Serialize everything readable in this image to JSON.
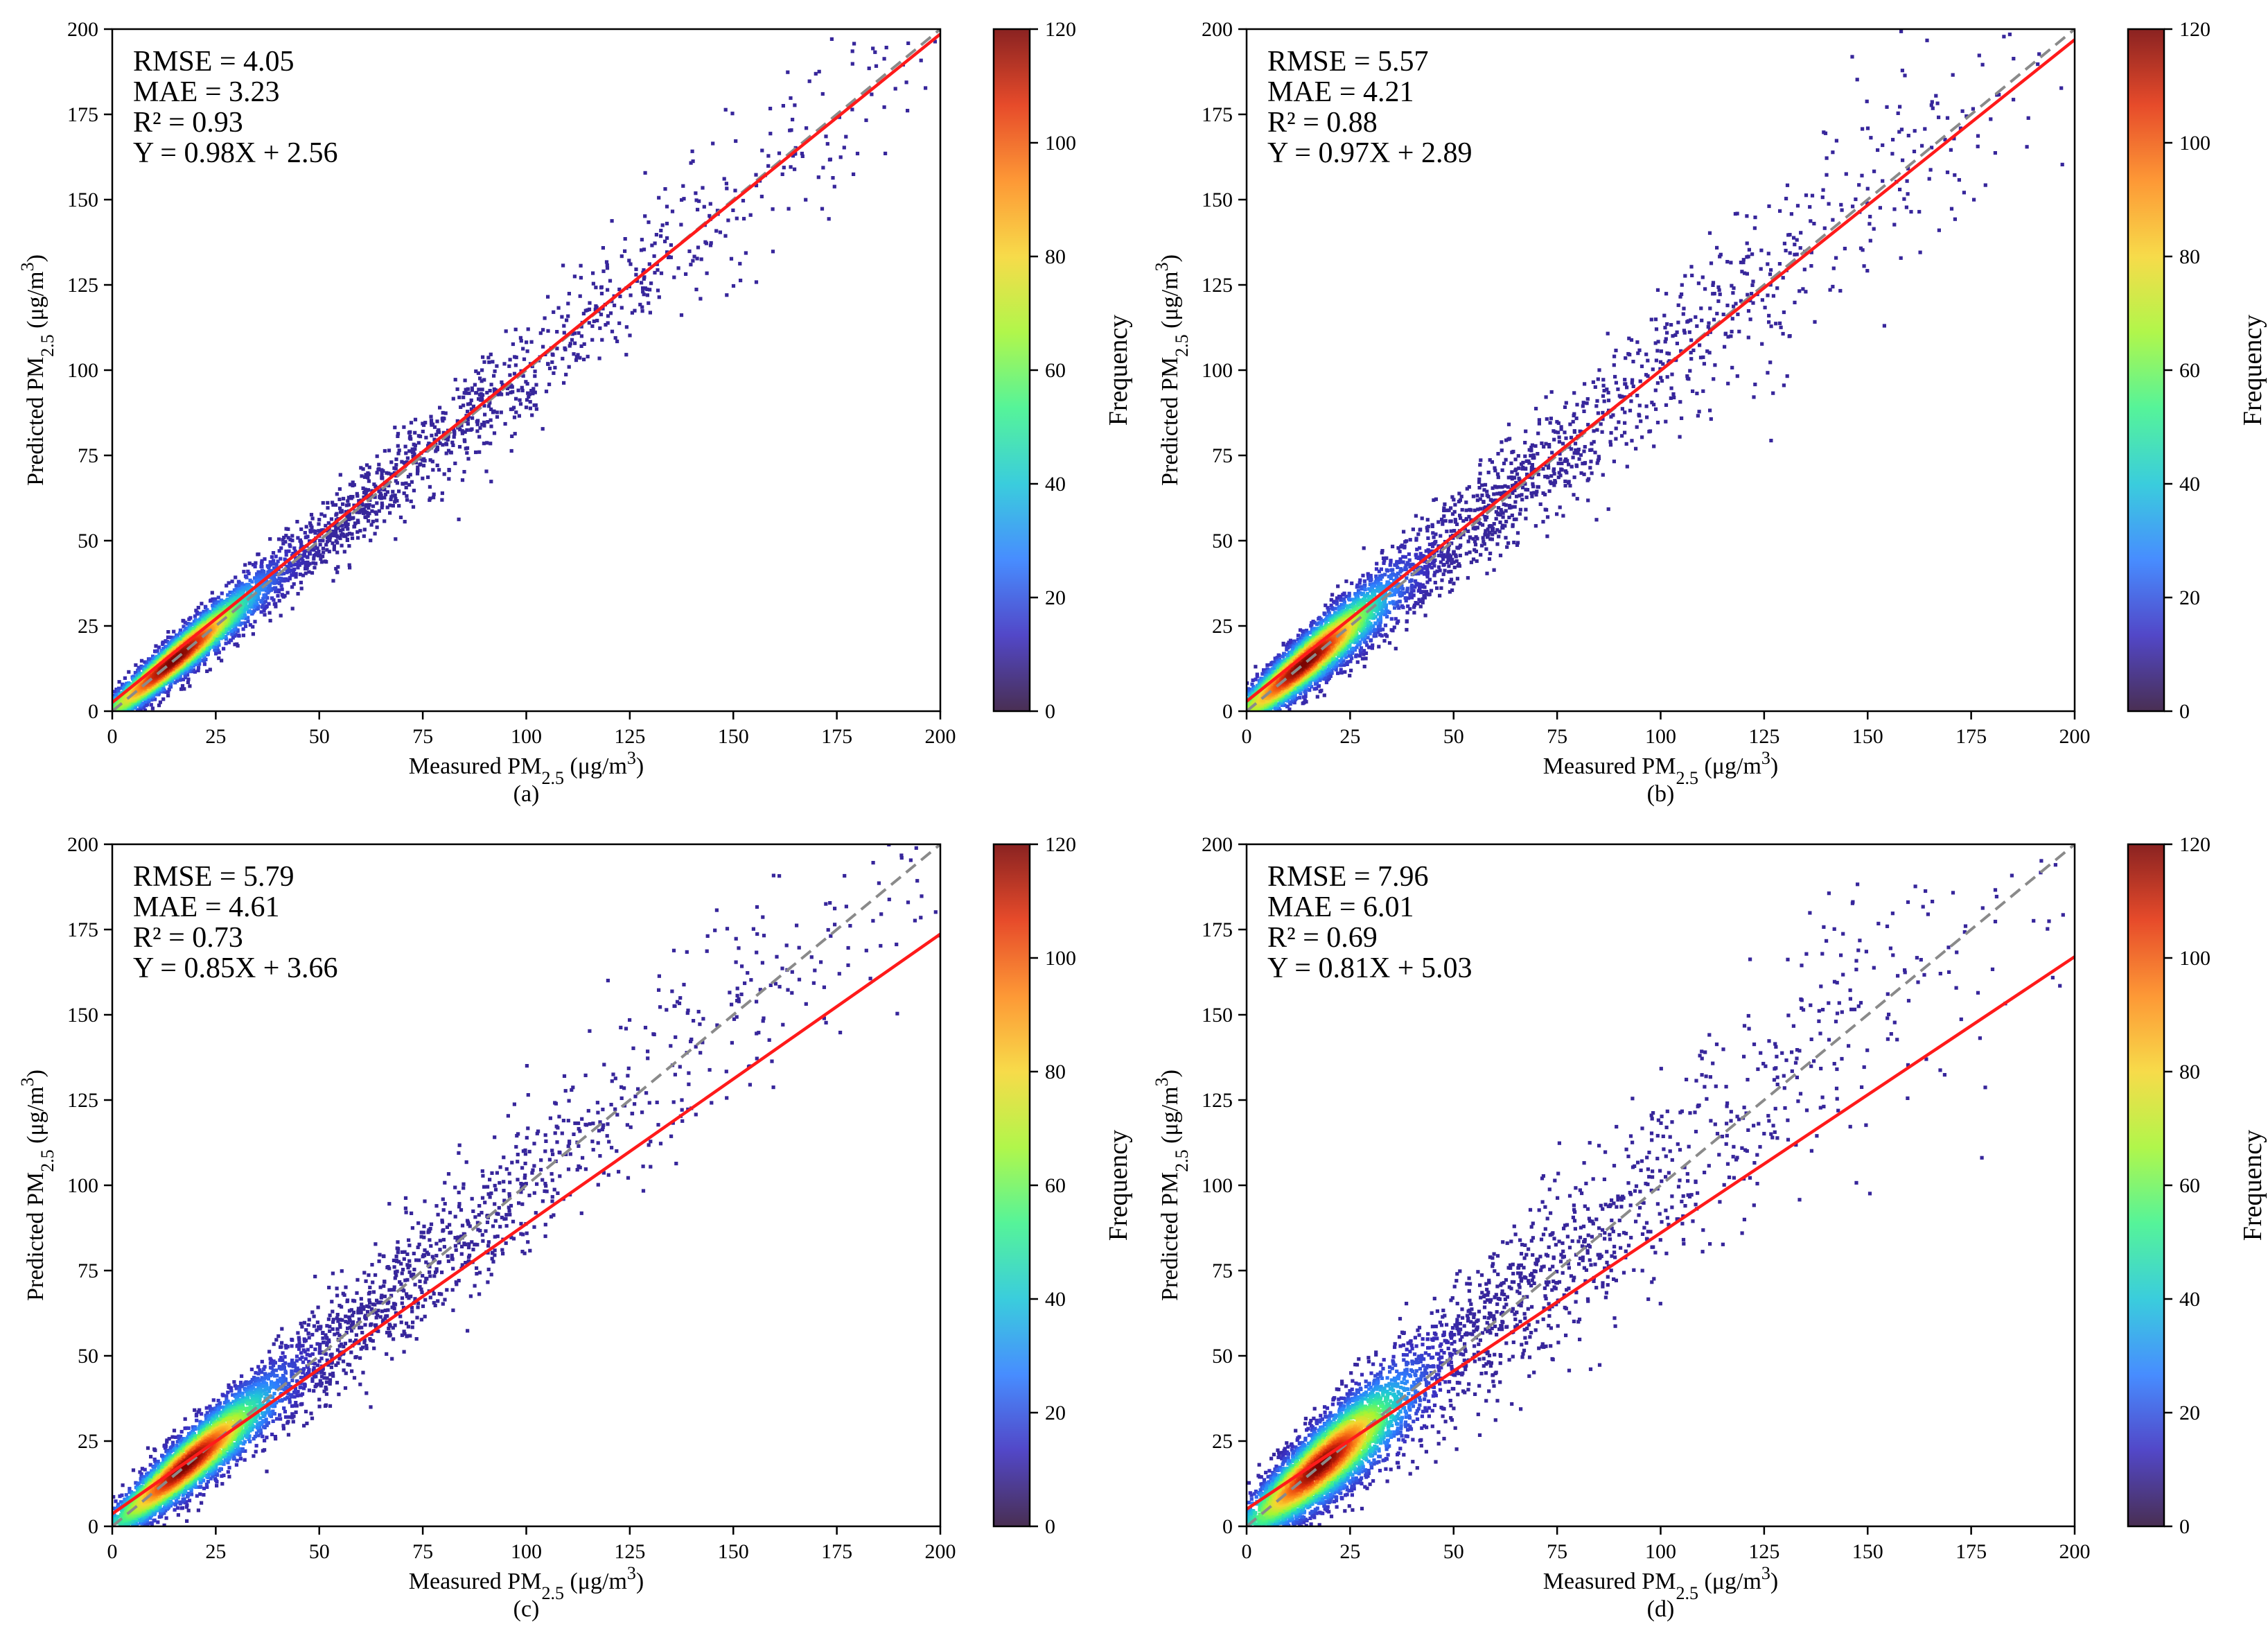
{
  "figure": {
    "panel_count": 4
  },
  "colormap": [
    "#30123b",
    "#3a2ec0",
    "#2e7dff",
    "#1fc6d8",
    "#3ef28b",
    "#a6f532",
    "#f6d631",
    "#fd8a1a",
    "#e3320d",
    "#7a0403"
  ],
  "colors": {
    "fit_line": "#ff1a1a",
    "identity_line": "#8a8a8a",
    "axis": "#000000"
  },
  "chart_data": [
    {
      "type": "scatter",
      "panel": "(a)",
      "xlabel": "Measured PM2.5 (μg/m3)",
      "ylabel": "Predicted PM2.5 (μg/m3)",
      "xlim": [
        0,
        200
      ],
      "ylim": [
        0,
        200
      ],
      "xticks": [
        "0",
        "25",
        "50",
        "75",
        "100",
        "125",
        "150",
        "175",
        "200"
      ],
      "yticks": [
        "0",
        "25",
        "50",
        "75",
        "100",
        "125",
        "150",
        "175",
        "200"
      ],
      "colorbar": {
        "label": "Frequency",
        "range": [
          0,
          120
        ],
        "ticks": [
          "0",
          "20",
          "40",
          "60",
          "80",
          "100",
          "120"
        ]
      },
      "stats": [
        "RMSE = 4.05",
        "MAE = 3.23",
        "R² = 0.93",
        "Y = 0.98X + 2.56"
      ],
      "fit": {
        "slope": 0.98,
        "intercept": 2.56
      },
      "scatter_spread": 4.05,
      "density_peak_x": 15
    },
    {
      "type": "scatter",
      "panel": "(b)",
      "xlabel": "Measured PM2.5 (μg/m3)",
      "ylabel": "Predicted PM2.5 (μg/m3)",
      "xlim": [
        0,
        200
      ],
      "ylim": [
        0,
        200
      ],
      "xticks": [
        "0",
        "25",
        "50",
        "75",
        "100",
        "125",
        "150",
        "175",
        "200"
      ],
      "yticks": [
        "0",
        "25",
        "50",
        "75",
        "100",
        "125",
        "150",
        "175",
        "200"
      ],
      "colorbar": {
        "label": "Frequency",
        "range": [
          0,
          120
        ],
        "ticks": [
          "0",
          "20",
          "40",
          "60",
          "80",
          "100",
          "120"
        ]
      },
      "stats": [
        "RMSE = 5.57",
        "MAE = 4.21",
        "R² = 0.88",
        "Y = 0.97X + 2.89"
      ],
      "fit": {
        "slope": 0.97,
        "intercept": 2.89
      },
      "scatter_spread": 5.57,
      "density_peak_x": 14
    },
    {
      "type": "scatter",
      "panel": "(c)",
      "xlabel": "Measured PM2.5 (μg/m3)",
      "ylabel": "Predicted PM2.5 (μg/m3)",
      "xlim": [
        0,
        200
      ],
      "ylim": [
        0,
        200
      ],
      "xticks": [
        "0",
        "25",
        "50",
        "75",
        "100",
        "125",
        "150",
        "175",
        "200"
      ],
      "yticks": [
        "0",
        "25",
        "50",
        "75",
        "100",
        "125",
        "150",
        "175",
        "200"
      ],
      "colorbar": {
        "label": "Frequency",
        "range": [
          0,
          120
        ],
        "ticks": [
          "0",
          "20",
          "40",
          "60",
          "80",
          "100",
          "120"
        ]
      },
      "stats": [
        "RMSE = 5.79",
        "MAE = 4.61",
        "R² = 0.73",
        "Y = 0.85X + 3.66"
      ],
      "fit": {
        "slope": 0.85,
        "intercept": 3.66
      },
      "scatter_spread": 5.79,
      "density_peak_x": 18
    },
    {
      "type": "scatter",
      "panel": "(d)",
      "xlabel": "Measured PM2.5 (μg/m3)",
      "ylabel": "Predicted PM2.5 (μg/m3)",
      "xlim": [
        0,
        200
      ],
      "ylim": [
        0,
        200
      ],
      "xticks": [
        "0",
        "25",
        "50",
        "75",
        "100",
        "125",
        "150",
        "175",
        "200"
      ],
      "yticks": [
        "0",
        "25",
        "50",
        "75",
        "100",
        "125",
        "150",
        "175",
        "200"
      ],
      "colorbar": {
        "label": "Frequency",
        "range": [
          0,
          120
        ],
        "ticks": [
          "0",
          "20",
          "40",
          "60",
          "80",
          "100",
          "120"
        ]
      },
      "stats": [
        "RMSE = 7.96",
        "MAE = 6.01",
        "R² = 0.69",
        "Y = 0.81X + 5.03"
      ],
      "fit": {
        "slope": 0.81,
        "intercept": 5.03
      },
      "scatter_spread": 7.96,
      "density_peak_x": 18
    }
  ]
}
